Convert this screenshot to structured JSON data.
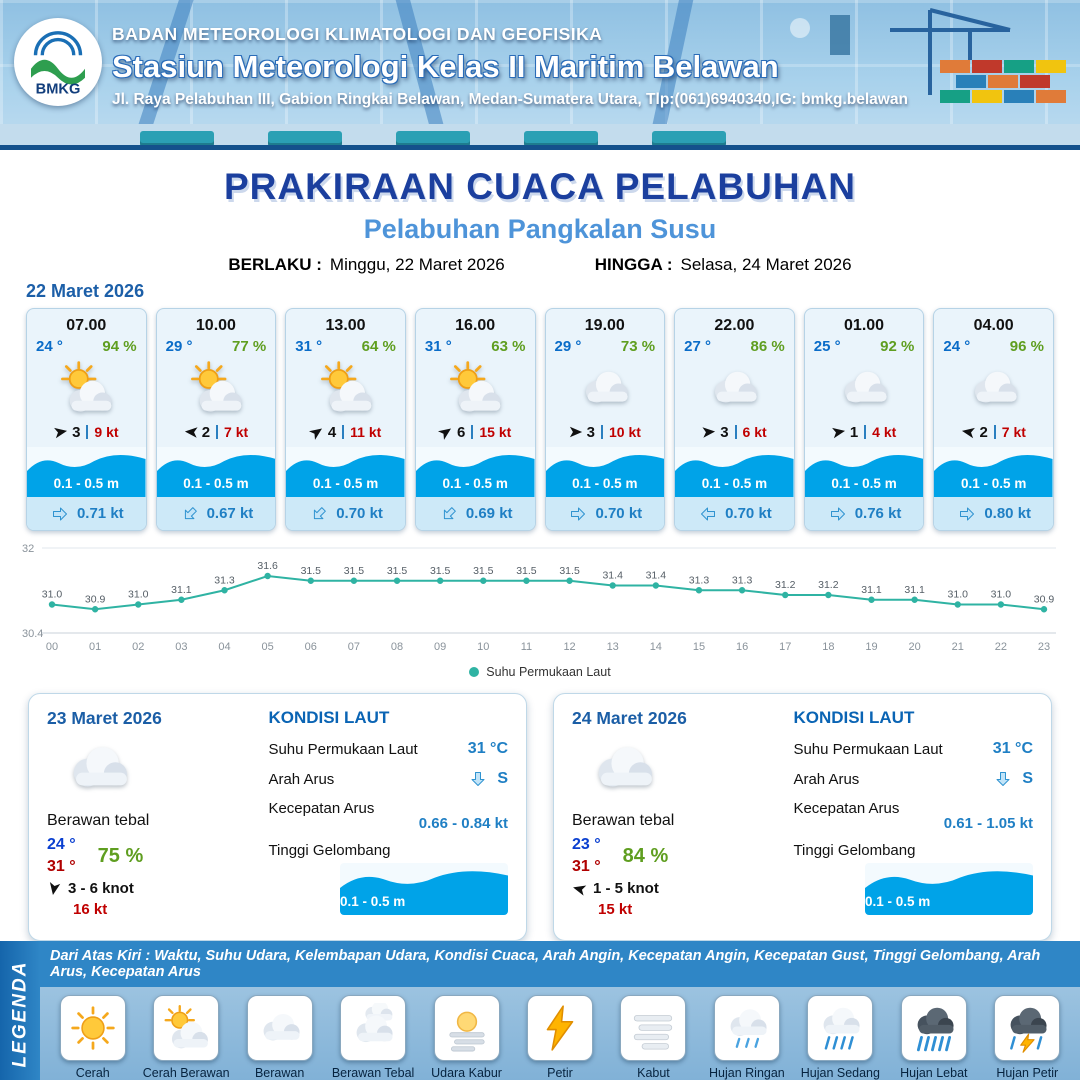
{
  "header": {
    "org": "BADAN METEOROLOGI KLIMATOLOGI DAN GEOFISIKA",
    "station": "Stasiun Meteorologi Kelas II Maritim Belawan",
    "address": "Jl. Raya Pelabuhan III, Gabion Ringkai Belawan, Medan-Sumatera Utara, Tlp:(061)6940340,IG: bmkg.belawan",
    "logo_text": "BMKG"
  },
  "title": {
    "main": "PRAKIRAAN CUACA PELABUHAN",
    "sub": "Pelabuhan Pangkalan Susu",
    "valid_label": "BERLAKU :",
    "valid_value": "Minggu, 22 Maret 2026",
    "until_label": "HINGGA :",
    "until_value": "Selasa, 24 Maret 2026"
  },
  "forecast": {
    "date": "22 Maret 2026",
    "slots": [
      {
        "time": "07.00",
        "temp": "24 °",
        "rh": "94 %",
        "icon": "cerah-berawan",
        "wind_speed": "3",
        "gust": "9 kt",
        "wave": "0.1 - 0.5 m",
        "current": "0.71 kt",
        "wind_dir_deg": -10,
        "current_dir_deg": 0
      },
      {
        "time": "10.00",
        "temp": "29 °",
        "rh": "77 %",
        "icon": "cerah-berawan",
        "wind_speed": "2",
        "gust": "7 kt",
        "wave": "0.1 - 0.5 m",
        "current": "0.67 kt",
        "wind_dir_deg": 185,
        "current_dir_deg": 135
      },
      {
        "time": "13.00",
        "temp": "31 °",
        "rh": "64 %",
        "icon": "cerah-berawan",
        "wind_speed": "4",
        "gust": "11 kt",
        "wave": "0.1 - 0.5 m",
        "current": "0.70 kt",
        "wind_dir_deg": -35,
        "current_dir_deg": 135
      },
      {
        "time": "16.00",
        "temp": "31 °",
        "rh": "63 %",
        "icon": "cerah-berawan",
        "wind_speed": "6",
        "gust": "15 kt",
        "wave": "0.1 - 0.5 m",
        "current": "0.69 kt",
        "wind_dir_deg": -35,
        "current_dir_deg": 135
      },
      {
        "time": "19.00",
        "temp": "29 °",
        "rh": "73 %",
        "icon": "berawan",
        "wind_speed": "3",
        "gust": "10 kt",
        "wave": "0.1 - 0.5 m",
        "current": "0.70 kt",
        "wind_dir_deg": 0,
        "current_dir_deg": 0
      },
      {
        "time": "22.00",
        "temp": "27 °",
        "rh": "86 %",
        "icon": "berawan",
        "wind_speed": "3",
        "gust": "6 kt",
        "wave": "0.1 - 0.5 m",
        "current": "0.70 kt",
        "wind_dir_deg": -5,
        "current_dir_deg": 180
      },
      {
        "time": "01.00",
        "temp": "25 °",
        "rh": "92 %",
        "icon": "berawan",
        "wind_speed": "1",
        "gust": "4 kt",
        "wave": "0.1 - 0.5 m",
        "current": "0.76 kt",
        "wind_dir_deg": -10,
        "current_dir_deg": 0
      },
      {
        "time": "04.00",
        "temp": "24 °",
        "rh": "96 %",
        "icon": "berawan",
        "wind_speed": "2",
        "gust": "7 kt",
        "wave": "0.1 - 0.5 m",
        "current": "0.80 kt",
        "wind_dir_deg": 190,
        "current_dir_deg": 0
      }
    ]
  },
  "chart_data": {
    "type": "line",
    "series_label": "Suhu Permukaan Laut",
    "x": [
      "00",
      "01",
      "02",
      "03",
      "04",
      "05",
      "06",
      "07",
      "08",
      "09",
      "10",
      "11",
      "12",
      "13",
      "14",
      "15",
      "16",
      "17",
      "18",
      "19",
      "20",
      "21",
      "22",
      "23"
    ],
    "values": [
      31.0,
      30.9,
      31.0,
      31.1,
      31.3,
      31.6,
      31.5,
      31.5,
      31.5,
      31.5,
      31.5,
      31.5,
      31.5,
      31.4,
      31.4,
      31.3,
      31.3,
      31.2,
      31.2,
      31.1,
      31.1,
      31.0,
      31.0,
      30.9
    ],
    "ylim": [
      30.4,
      32
    ],
    "line_color": "#2fb3a3",
    "legend_position": "bottom"
  },
  "labels": {
    "sea_title": "KONDISI LAUT",
    "sst": "Suhu Permukaan Laut",
    "current_dir": "Arah Arus",
    "current_speed": "Kecepatan Arus",
    "wave_height": "Tinggi Gelombang"
  },
  "days": [
    {
      "date": "23 Maret 2026",
      "icon": "berawan",
      "condition": "Berawan tebal",
      "tmin": "24 °",
      "tmax": "31 °",
      "rh": "75 %",
      "wind": "3 - 6 knot",
      "gust": "16 kt",
      "sst": "31 °C",
      "current_dir": "S",
      "current_speed": "0.66 - 0.84 kt",
      "wave": "0.1 - 0.5 m",
      "wind_dir_deg": 100
    },
    {
      "date": "24 Maret 2026",
      "icon": "berawan",
      "condition": "Berawan tebal",
      "tmin": "23 °",
      "tmax": "31 °",
      "rh": "84 %",
      "wind": "1 - 5 knot",
      "gust": "15 kt",
      "sst": "31 °C",
      "current_dir": "S",
      "current_speed": "0.61 - 1.05 kt",
      "wave": "0.1 - 0.5 m",
      "wind_dir_deg": 195
    }
  ],
  "legend": {
    "heading": "LEGENDA",
    "note": "Dari Atas Kiri : Waktu, Suhu Udara, Kelembapan Udara, Kondisi Cuaca, Arah Angin, Kecepatan Angin, Kecepatan Gust, Tinggi Gelombang, Arah Arus, Kecepatan Arus",
    "items": [
      {
        "label": "Cerah",
        "icon": "cerah"
      },
      {
        "label": "Cerah Berawan",
        "icon": "cerah-berawan"
      },
      {
        "label": "Berawan",
        "icon": "berawan"
      },
      {
        "label": "Berawan Tebal",
        "icon": "berawan-tebal"
      },
      {
        "label": "Udara Kabur",
        "icon": "udara-kabur"
      },
      {
        "label": "Petir",
        "icon": "petir"
      },
      {
        "label": "Kabut",
        "icon": "kabut"
      },
      {
        "label": "Hujan Ringan",
        "icon": "hujan-ringan"
      },
      {
        "label": "Hujan Sedang",
        "icon": "hujan-sedang"
      },
      {
        "label": "Hujan Lebat",
        "icon": "hujan-lebat"
      },
      {
        "label": "Hujan Petir",
        "icon": "hujan-petir"
      }
    ]
  }
}
